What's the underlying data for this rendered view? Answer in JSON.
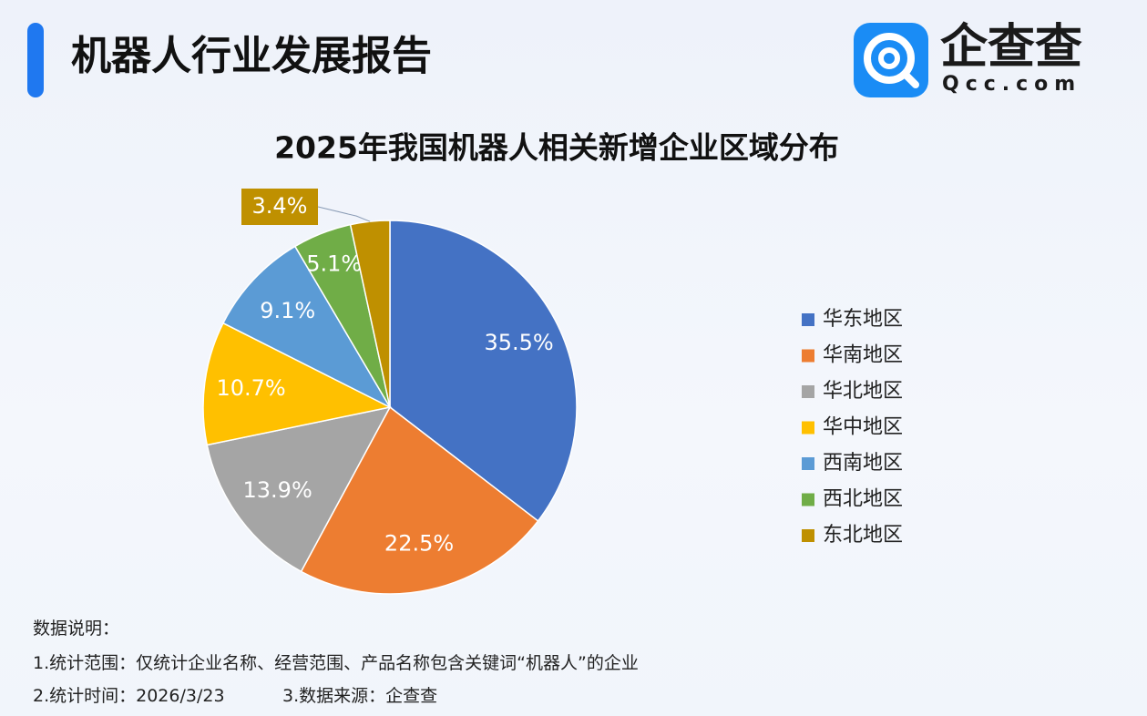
{
  "header": {
    "title": "机器人行业发展报告",
    "logo_name": "企查查",
    "logo_domain": "Qcc.com"
  },
  "chart_data": {
    "type": "pie",
    "title": "2025年我国机器人相关新增企业区域分布",
    "categories": [
      "华东地区",
      "华南地区",
      "华北地区",
      "华中地区",
      "西南地区",
      "西北地区",
      "东北地区"
    ],
    "values": [
      35.5,
      22.5,
      13.9,
      10.7,
      9.1,
      5.1,
      3.4
    ],
    "value_labels": [
      "35.5%",
      "22.5%",
      "13.9%",
      "10.7%",
      "9.1%",
      "5.1%",
      "3.4%"
    ],
    "colors": [
      "#4472c4",
      "#ed7d31",
      "#a5a5a5",
      "#ffc000",
      "#5b9bd5",
      "#70ad47",
      "#bf9000"
    ],
    "legend": "right"
  },
  "notes": {
    "heading": "数据说明：",
    "scope": "1.统计范围：仅统计企业名称、经营范围、产品名称包含关键词“机器人”的企业",
    "time": "2.统计时间：2026/3/23",
    "source": "3.数据来源：企查查"
  }
}
